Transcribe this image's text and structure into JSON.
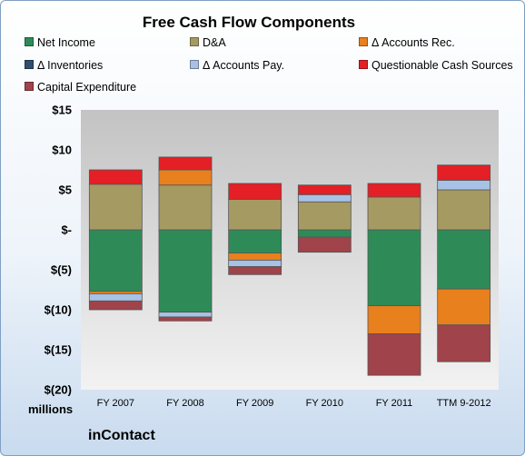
{
  "chart_data": {
    "type": "bar",
    "stacked": true,
    "title": "Free Cash Flow Components",
    "units_label": "millions",
    "categories": [
      "FY 2007",
      "FY 2008",
      "FY 2009",
      "FY 2010",
      "FY 2011",
      "TTM 9-2012"
    ],
    "ylim": [
      -20,
      15
    ],
    "yticks": [
      15,
      10,
      5,
      0,
      -5,
      -10,
      -15,
      -20
    ],
    "ytick_labels": [
      "$15",
      "$10",
      "$5",
      "$-",
      "$(5)",
      "$(10)",
      "$(15)",
      "$(20)"
    ],
    "legend_position": "top",
    "grid": false,
    "series": [
      {
        "name": "Net Income",
        "color": "#2e8b57",
        "values": [
          -7.7,
          -10.3,
          -2.9,
          -0.9,
          -9.5,
          -7.4
        ]
      },
      {
        "name": "D&A",
        "color": "#a69a63",
        "values": [
          5.7,
          5.6,
          3.8,
          3.5,
          4.1,
          5.0
        ]
      },
      {
        "name": "Δ Accounts Rec.",
        "color": "#e8801e",
        "values": [
          -0.3,
          1.9,
          -0.9,
          0.0,
          -3.5,
          -4.5
        ]
      },
      {
        "name": "Δ Inventories",
        "color": "#2f4f6f",
        "values": [
          0,
          0,
          0,
          0,
          0,
          0
        ]
      },
      {
        "name": "Δ Accounts Pay.",
        "color": "#a8c2e6",
        "values": [
          -0.9,
          -0.6,
          -0.8,
          0.9,
          0,
          1.2
        ]
      },
      {
        "name": "Questionable Cash Sources",
        "color": "#e41f25",
        "values": [
          1.8,
          1.6,
          2.0,
          1.2,
          1.7,
          1.9
        ]
      },
      {
        "name": "Capital Expenditure",
        "color": "#a0434a",
        "values": [
          -1.1,
          -0.5,
          -1.0,
          -1.9,
          -5.2,
          -4.6
        ]
      }
    ]
  },
  "footer": {
    "brand": "inContact"
  }
}
